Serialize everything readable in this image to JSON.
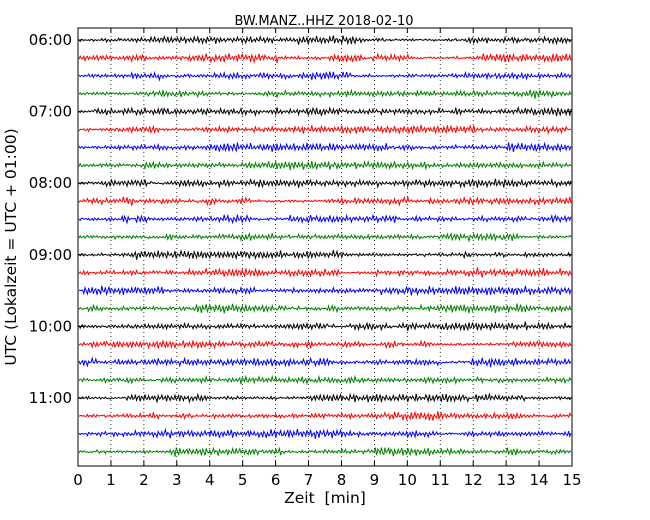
{
  "chart_data": {
    "type": "line",
    "title": "BW.MANZ..HHZ 2018-02-10",
    "xlabel": "Zeit  [min]",
    "ylabel": "UTC (Lokalzeit = UTC + 01:00)",
    "xlim": [
      0,
      15
    ],
    "x_ticks": [
      "0",
      "1",
      "2",
      "3",
      "4",
      "5",
      "6",
      "7",
      "8",
      "9",
      "10",
      "11",
      "12",
      "13",
      "14",
      "15"
    ],
    "y_ticks": [
      "06:00",
      "07:00",
      "08:00",
      "09:00",
      "10:00",
      "11:00"
    ],
    "y_tick_rows": [
      0,
      4,
      8,
      12,
      16,
      20
    ],
    "trace_count": 24,
    "trace_colors": [
      "#000000",
      "#ff0000",
      "#0000ff",
      "#008000"
    ],
    "vertical_grid": "dotted",
    "legend": "none"
  }
}
